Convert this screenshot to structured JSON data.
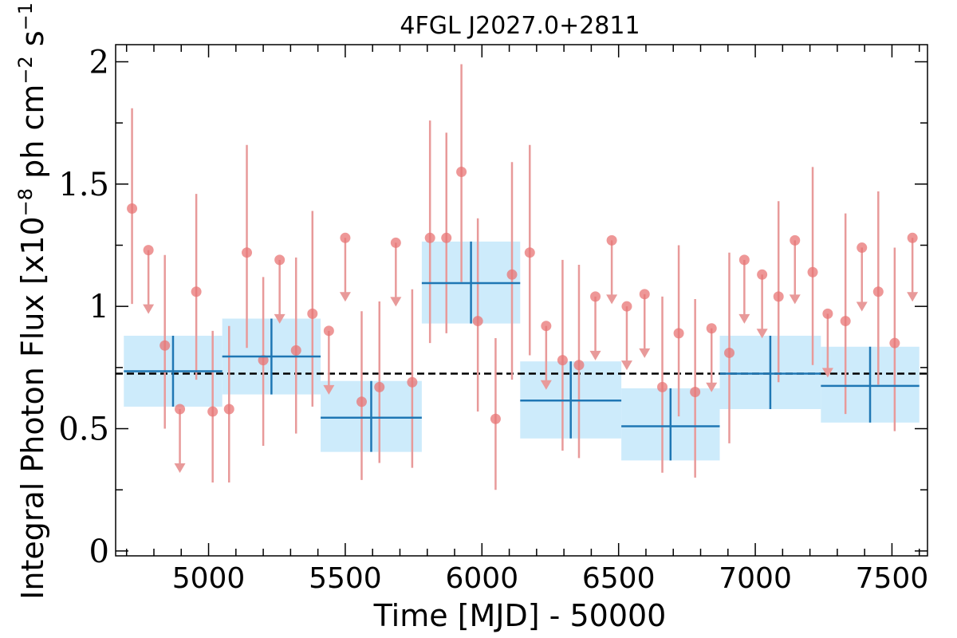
{
  "chart_data": {
    "type": "scatter",
    "title": "4FGL J2027.0+2811",
    "xlabel": "Time [MJD] - 50000",
    "ylabel": "Integral Photon Flux [x10",
    "ylabel_exp1": "−8",
    "ylabel_mid": " ph cm",
    "ylabel_exp2": "−2",
    "ylabel_tail": " s",
    "ylabel_exp3": "−1",
    "ylabel_end": "]",
    "xlim": [
      4660,
      7630
    ],
    "ylim": [
      -0.02,
      2.07
    ],
    "x_ticks": [
      5000,
      5500,
      6000,
      6500,
      7000,
      7500
    ],
    "x_tick_labels": [
      "5000",
      "5500",
      "6000",
      "6500",
      "7000",
      "7500"
    ],
    "x_minor_step": 100,
    "y_ticks": [
      0,
      0.5,
      1,
      1.5,
      2
    ],
    "y_tick_labels": [
      "0",
      "0.5",
      "1",
      "1.5",
      "2"
    ],
    "y_minor_step": 0.25,
    "grid": false,
    "reference_line": {
      "y": 0.725,
      "style": "dashed",
      "color": "#000000"
    },
    "colors": {
      "points": "#e87474",
      "errorbars": "#e89a9a",
      "bins": "#1f77b4",
      "bin_band": "#cdebfb",
      "reference": "#000000"
    },
    "series": [
      {
        "kind": "short-bin points",
        "points": [
          {
            "x": 4720,
            "y": 1.4,
            "lo": 1.01,
            "hi": 1.81
          },
          {
            "x": 4840,
            "y": 0.84,
            "lo": 0.5,
            "hi": 1.21
          },
          {
            "x": 4955,
            "y": 1.06,
            "lo": 0.7,
            "hi": 1.46
          },
          {
            "x": 5015,
            "y": 0.57,
            "lo": 0.28,
            "hi": 0.9
          },
          {
            "x": 5075,
            "y": 0.58,
            "lo": 0.28,
            "hi": 0.92
          },
          {
            "x": 5140,
            "y": 1.22,
            "lo": 0.83,
            "hi": 1.66
          },
          {
            "x": 5200,
            "y": 0.78,
            "lo": 0.43,
            "hi": 1.12
          },
          {
            "x": 5320,
            "y": 0.82,
            "lo": 0.48,
            "hi": 1.2
          },
          {
            "x": 5380,
            "y": 0.97,
            "lo": 0.59,
            "hi": 1.39
          },
          {
            "x": 5560,
            "y": 0.61,
            "lo": 0.29,
            "hi": 0.98
          },
          {
            "x": 5625,
            "y": 0.67,
            "lo": 0.36,
            "hi": 1.02
          },
          {
            "x": 5745,
            "y": 0.69,
            "lo": 0.34,
            "hi": 1.07
          },
          {
            "x": 5810,
            "y": 1.28,
            "lo": 0.85,
            "hi": 1.76
          },
          {
            "x": 5870,
            "y": 1.28,
            "lo": 0.89,
            "hi": 1.71
          },
          {
            "x": 5925,
            "y": 1.55,
            "lo": 1.1,
            "hi": 1.99
          },
          {
            "x": 5985,
            "y": 0.94,
            "lo": 0.57,
            "hi": 1.36
          },
          {
            "x": 6050,
            "y": 0.54,
            "lo": 0.25,
            "hi": 0.87
          },
          {
            "x": 6110,
            "y": 1.13,
            "lo": 0.7,
            "hi": 1.59
          },
          {
            "x": 6175,
            "y": 1.22,
            "lo": 0.8,
            "hi": 1.66
          },
          {
            "x": 6295,
            "y": 0.78,
            "lo": 0.41,
            "hi": 1.19
          },
          {
            "x": 6355,
            "y": 0.76,
            "lo": 0.38,
            "hi": 1.17
          },
          {
            "x": 6660,
            "y": 0.67,
            "lo": 0.32,
            "hi": 1.04
          },
          {
            "x": 6720,
            "y": 0.89,
            "lo": 0.55,
            "hi": 1.25
          },
          {
            "x": 6780,
            "y": 0.65,
            "lo": 0.3,
            "hi": 1.03
          },
          {
            "x": 6905,
            "y": 0.81,
            "lo": 0.44,
            "hi": 1.22
          },
          {
            "x": 7085,
            "y": 1.04,
            "lo": 0.69,
            "hi": 1.43
          },
          {
            "x": 7210,
            "y": 1.14,
            "lo": 0.76,
            "hi": 1.57
          },
          {
            "x": 7330,
            "y": 0.94,
            "lo": 0.56,
            "hi": 1.38
          },
          {
            "x": 7450,
            "y": 1.06,
            "lo": 0.68,
            "hi": 1.47
          },
          {
            "x": 7510,
            "y": 0.85,
            "lo": 0.49,
            "hi": 1.24
          }
        ],
        "upper_limits": [
          {
            "x": 4780,
            "y": 1.23
          },
          {
            "x": 4895,
            "y": 0.58
          },
          {
            "x": 5260,
            "y": 1.19
          },
          {
            "x": 5440,
            "y": 0.9
          },
          {
            "x": 5500,
            "y": 1.28
          },
          {
            "x": 5685,
            "y": 1.26
          },
          {
            "x": 6235,
            "y": 0.92
          },
          {
            "x": 6415,
            "y": 1.04
          },
          {
            "x": 6475,
            "y": 1.27
          },
          {
            "x": 6530,
            "y": 1.0
          },
          {
            "x": 6595,
            "y": 1.05
          },
          {
            "x": 6840,
            "y": 0.91
          },
          {
            "x": 6960,
            "y": 1.19
          },
          {
            "x": 7025,
            "y": 1.13
          },
          {
            "x": 7145,
            "y": 1.27
          },
          {
            "x": 7265,
            "y": 0.97
          },
          {
            "x": 7390,
            "y": 1.24
          },
          {
            "x": 7575,
            "y": 1.28
          }
        ]
      },
      {
        "kind": "long-bin points",
        "points": [
          {
            "x0": 4690,
            "x1": 5050,
            "y": 0.735,
            "lo": 0.59,
            "hi": 0.88
          },
          {
            "x0": 5050,
            "x1": 5410,
            "y": 0.795,
            "lo": 0.64,
            "hi": 0.95
          },
          {
            "x0": 5410,
            "x1": 5780,
            "y": 0.545,
            "lo": 0.405,
            "hi": 0.695
          },
          {
            "x0": 5780,
            "x1": 6140,
            "y": 1.095,
            "lo": 0.93,
            "hi": 1.265
          },
          {
            "x0": 6140,
            "x1": 6510,
            "y": 0.615,
            "lo": 0.46,
            "hi": 0.775
          },
          {
            "x0": 6510,
            "x1": 6870,
            "y": 0.51,
            "lo": 0.37,
            "hi": 0.665
          },
          {
            "x0": 6870,
            "x1": 7240,
            "y": 0.725,
            "lo": 0.58,
            "hi": 0.88
          },
          {
            "x0": 7240,
            "x1": 7600,
            "y": 0.675,
            "lo": 0.525,
            "hi": 0.835
          }
        ]
      }
    ]
  }
}
